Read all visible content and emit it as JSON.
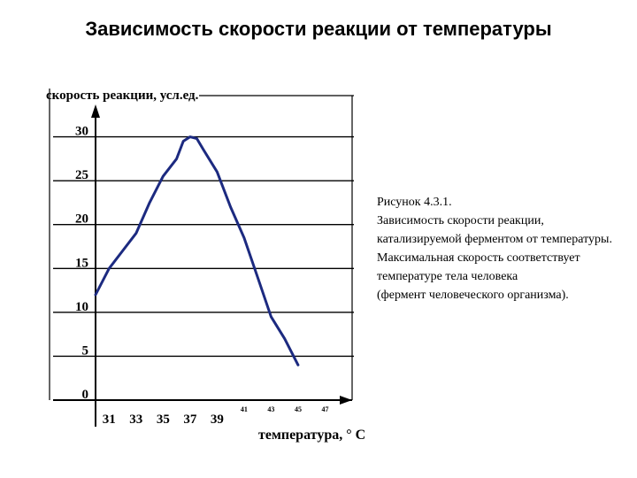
{
  "slide": {
    "title": "Зависимость скорости реакции от температуры"
  },
  "caption": {
    "lines": [
      "Рисунок 4.3.1.",
      "Зависимость скорости реакции,",
      "катализируемой ферментом от температуры.",
      "Максимальная скорость соответствует",
      "температуре тела человека",
      "(фермент человеческого организма)."
    ]
  },
  "chart_data": {
    "type": "line",
    "ylabel": "скорость реакции, усл.ед.",
    "xlabel": "температура, ° С",
    "xlim": [
      30,
      49
    ],
    "ylim": [
      0,
      35
    ],
    "x_ticks": [
      "31",
      "33",
      "35",
      "37",
      "39",
      "41",
      "43",
      "45",
      "47"
    ],
    "y_ticks": [
      "0",
      "5",
      "10",
      "15",
      "20",
      "25",
      "30"
    ],
    "grid": true,
    "color": "#1c2a80",
    "series": [
      {
        "x": [
          30,
          31,
          32,
          33,
          34,
          35,
          36,
          36.5,
          37,
          37.5,
          38,
          39,
          40,
          41,
          42,
          43,
          44,
          45
        ],
        "y": [
          12,
          15,
          17,
          19,
          22.5,
          25.5,
          27.5,
          29.5,
          30,
          29.8,
          28.5,
          26,
          22,
          18.5,
          14,
          9.5,
          7,
          4
        ]
      }
    ]
  }
}
